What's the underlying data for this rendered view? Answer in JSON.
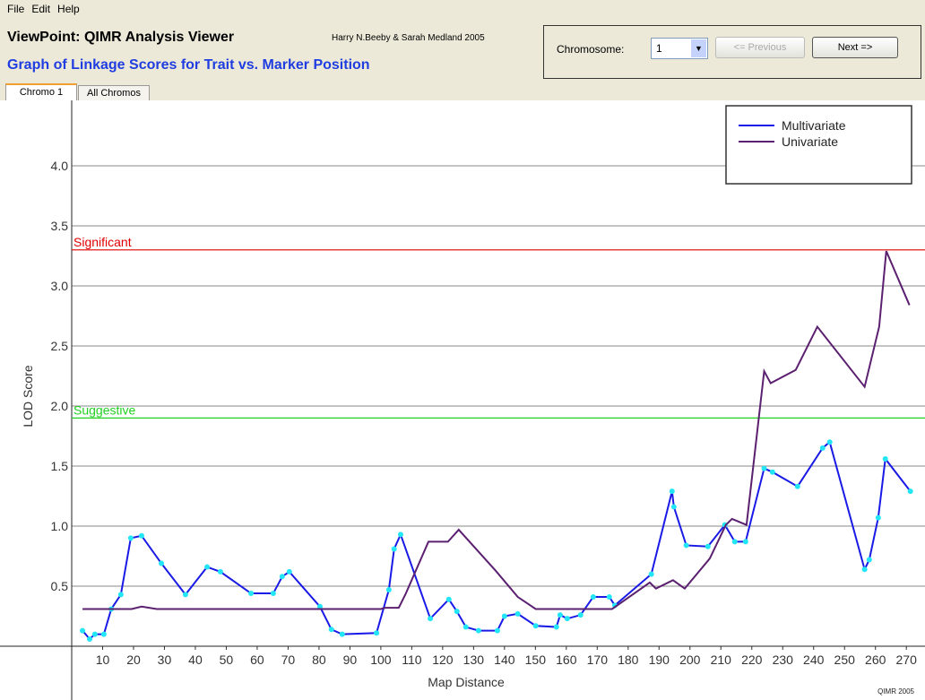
{
  "menu": [
    "File",
    "Edit",
    "Help"
  ],
  "header": {
    "title": "ViewPoint: QIMR Analysis Viewer",
    "credit": "Harry N.Beeby & Sarah Medland 2005",
    "subtitle": "Graph of Linkage Scores for Trait vs. Marker Position"
  },
  "controls": {
    "label": "Chromosome:",
    "selected": "1",
    "previous": "<= Previous",
    "next": "Next =>"
  },
  "tabs": [
    "Chromo 1",
    "All Chromos"
  ],
  "footer": "QIMR 2005",
  "chart_data": {
    "type": "line",
    "x_label": "Map Distance",
    "y_label": "LOD Score",
    "xlim": [
      0,
      274
    ],
    "ylim": [
      0,
      4.5
    ],
    "xticks": [
      10,
      20,
      30,
      40,
      50,
      60,
      70,
      80,
      90,
      100,
      110,
      120,
      130,
      140,
      150,
      160,
      170,
      180,
      190,
      200,
      210,
      220,
      230,
      240,
      250,
      260,
      270
    ],
    "yticks": [
      0.5,
      {
        "value": 1,
        "label": "1.0"
      },
      1.5,
      {
        "value": 2,
        "label": "2.0"
      },
      2.5,
      {
        "value": 3,
        "label": "3.0"
      },
      3.5,
      {
        "value": 4,
        "label": "4.0"
      }
    ],
    "grid": true,
    "legend": "top-right",
    "thresholds": [
      {
        "label": "Significant",
        "value": 3.3,
        "color": "#e00000"
      },
      {
        "label": "Suggestive",
        "value": 1.9,
        "color": "#22d022"
      }
    ],
    "series": [
      {
        "name": "Multivariate",
        "color": "#1a1ae6",
        "marker_color": "#22e5f5",
        "x": [
          3.5,
          5.8,
          7.5,
          10.4,
          12.8,
          15.9,
          19.1,
          22.6,
          29,
          36.8,
          43.8,
          48.1,
          58,
          65.2,
          68.1,
          70.4,
          80.3,
          84,
          87.5,
          98.6,
          102.6,
          104.3,
          106.4,
          116,
          122,
          124.6,
          127.5,
          131.6,
          137.7,
          140,
          144.3,
          150.1,
          156.8,
          158,
          160.3,
          164.6,
          168.7,
          173.9,
          175.7,
          187.5,
          194.2,
          194.8,
          198.8,
          205.8,
          211.3,
          214.5,
          218,
          224,
          226.7,
          234.8,
          242.9,
          245.2,
          256.5,
          258,
          260.9,
          263.2,
          271.3
        ],
        "values": [
          0.13,
          0.06,
          0.1,
          0.1,
          0.31,
          0.43,
          0.9,
          0.92,
          0.69,
          0.43,
          0.66,
          0.62,
          0.44,
          0.44,
          0.58,
          0.62,
          0.33,
          0.14,
          0.1,
          0.11,
          0.47,
          0.81,
          0.93,
          0.23,
          0.39,
          0.29,
          0.16,
          0.13,
          0.13,
          0.25,
          0.27,
          0.17,
          0.16,
          0.26,
          0.23,
          0.26,
          0.41,
          0.41,
          0.34,
          0.6,
          1.29,
          1.16,
          0.84,
          0.83,
          1.01,
          0.87,
          0.87,
          1.48,
          1.45,
          1.33,
          1.65,
          1.7,
          0.64,
          0.72,
          1.07,
          1.56,
          1.29
        ]
      },
      {
        "name": "Univariate",
        "color": "#5b2070",
        "x": [
          3.5,
          19.4,
          22.6,
          27.5,
          47.8,
          100,
          101.4,
          105.8,
          108.1,
          115.4,
          121.7,
          125.2,
          137.1,
          144.3,
          150.1,
          174.8,
          187,
          189,
          194.5,
          198.3,
          206.4,
          211.6,
          213.6,
          218.3,
          224,
          226.1,
          234.2,
          241.2,
          256.5,
          261.2,
          263.5,
          271
        ],
        "values": [
          0.31,
          0.31,
          0.33,
          0.31,
          0.31,
          0.31,
          0.32,
          0.32,
          0.44,
          0.87,
          0.87,
          0.97,
          0.63,
          0.41,
          0.31,
          0.31,
          0.53,
          0.48,
          0.55,
          0.48,
          0.73,
          1.01,
          1.06,
          1.01,
          2.29,
          2.19,
          2.3,
          2.66,
          2.16,
          2.66,
          3.29,
          2.84
        ]
      }
    ]
  }
}
